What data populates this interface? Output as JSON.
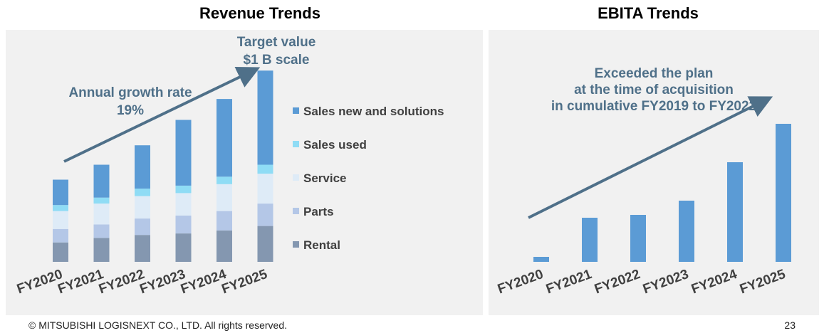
{
  "slide": {
    "copyright": "© MITSUBISHI LOGISNEXT CO., LTD. All rights reserved.",
    "page_number": "23"
  },
  "colors": {
    "panel_bg": "#f1f1f1",
    "annotation": "#4f7089",
    "label": "#404040"
  },
  "chart_data": [
    {
      "type": "bar",
      "stacked": true,
      "title": "Revenue Trends",
      "categories": [
        "FY2020",
        "FY2021",
        "FY2022",
        "FY2023",
        "FY2024",
        "FY2025"
      ],
      "series": [
        {
          "name": "Rental",
          "color": "#8497b0",
          "values": [
            26,
            32,
            36,
            38,
            42,
            48
          ]
        },
        {
          "name": "Parts",
          "color": "#b4c7e7",
          "values": [
            18,
            18,
            22,
            24,
            26,
            30
          ]
        },
        {
          "name": "Service",
          "color": "#deebf7",
          "values": [
            24,
            28,
            30,
            30,
            36,
            40
          ]
        },
        {
          "name": "Sales used",
          "color": "#8fdcf5",
          "values": [
            8,
            8,
            10,
            10,
            10,
            12
          ]
        },
        {
          "name": "Sales new and solutions",
          "color": "#5b9bd5",
          "values": [
            34,
            44,
            58,
            88,
            104,
            126
          ]
        }
      ],
      "legend": "right",
      "grid": false,
      "annotations": [
        "Annual growth rate\n19%",
        "Target value\n$1 B scale"
      ]
    },
    {
      "type": "bar",
      "title": "EBITA Trends",
      "categories": [
        "FY2020",
        "FY2021",
        "FY2022",
        "FY2023",
        "FY2024",
        "FY2025"
      ],
      "series": [
        {
          "color": "#5b9bd5",
          "values": [
            7,
            62,
            66,
            86,
            140,
            194
          ]
        }
      ],
      "grid": false,
      "annotations": [
        "Exceeded the plan\nat the time of acquisition\nin cumulative FY2019 to FY2022"
      ]
    }
  ]
}
